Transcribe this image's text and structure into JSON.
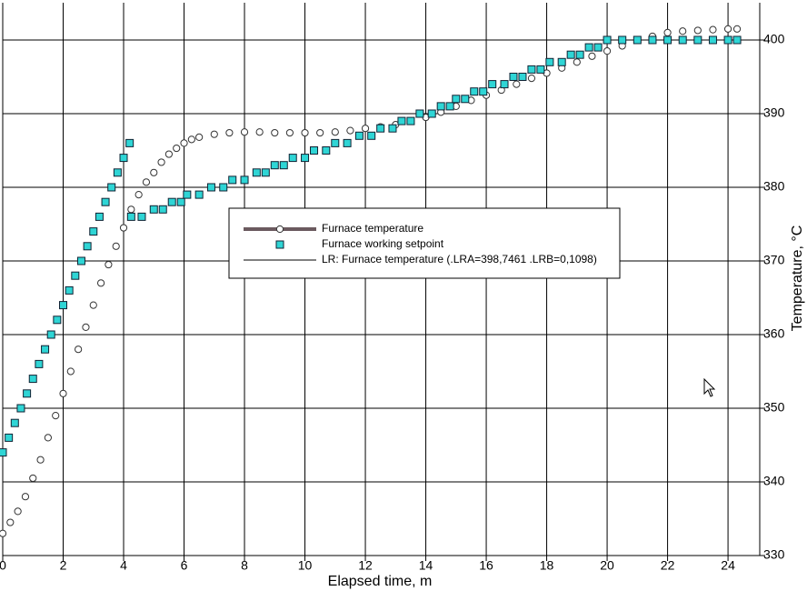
{
  "chart_data": {
    "type": "scatter",
    "x_label": "Elapsed time, m",
    "y_label": "Temperature, °C",
    "xlim": [
      0,
      25.05
    ],
    "ylim": [
      330,
      405.06
    ],
    "xticks": [
      0,
      2,
      4,
      6,
      8,
      10,
      12,
      14,
      16,
      18,
      20,
      22,
      24
    ],
    "yticks": [
      330,
      340,
      350,
      360,
      370,
      380,
      390,
      400
    ],
    "grid": true,
    "legend": "center",
    "series": [
      {
        "name": "Furnace temperature",
        "color": "#6b5a5f",
        "marker": "circle",
        "x": [
          0,
          0.25,
          0.5,
          0.75,
          1,
          1.25,
          1.5,
          1.75,
          2,
          2.25,
          2.5,
          2.75,
          3,
          3.25,
          3.5,
          3.75,
          4,
          4.25,
          4.5,
          4.75,
          5,
          5.25,
          5.5,
          5.75,
          6,
          6.25,
          6.5,
          7,
          7.5,
          8,
          8.5,
          9,
          9.5,
          10,
          10.5,
          11,
          11.5,
          12,
          12.5,
          13,
          13.5,
          14,
          14.5,
          15,
          15.5,
          16,
          16.5,
          17,
          17.5,
          18,
          18.5,
          19,
          19.5,
          20,
          20.5,
          21,
          21.5,
          22,
          22.5,
          23,
          23.5,
          24,
          24.3
        ],
        "values": [
          333,
          334.5,
          336,
          338,
          340.5,
          343,
          346,
          349,
          352,
          355,
          358,
          361,
          364,
          367,
          369.5,
          372,
          374.5,
          377,
          379,
          380.7,
          382,
          383.4,
          384.5,
          385.3,
          386,
          386.5,
          386.8,
          387.2,
          387.4,
          387.5,
          387.5,
          387.4,
          387.4,
          387.4,
          387.4,
          387.5,
          387.7,
          388,
          388.2,
          388.5,
          389,
          389.5,
          390.2,
          391,
          391.8,
          392.5,
          393.2,
          394,
          394.8,
          395.5,
          396.2,
          397,
          397.8,
          398.5,
          399.2,
          400,
          400.5,
          401,
          401.2,
          401.3,
          401.4,
          401.5,
          401.5
        ]
      },
      {
        "name": "Furnace working setpoint",
        "color": "#2fd5d5",
        "marker": "square",
        "x": [
          0,
          0.2,
          0.4,
          0.6,
          0.8,
          1,
          1.2,
          1.4,
          1.6,
          1.8,
          2,
          2.2,
          2.4,
          2.6,
          2.8,
          3,
          3.2,
          3.4,
          3.6,
          3.8,
          4,
          4.2,
          4.25,
          4.6,
          5,
          5.3,
          5.6,
          5.9,
          6.1,
          6.5,
          6.9,
          7.3,
          7.6,
          8,
          8.4,
          8.7,
          9,
          9.3,
          9.6,
          10,
          10.3,
          10.7,
          11,
          11.4,
          11.8,
          12.2,
          12.5,
          12.9,
          13.2,
          13.5,
          13.8,
          14.2,
          14.5,
          14.8,
          15,
          15.3,
          15.6,
          15.9,
          16.2,
          16.6,
          16.9,
          17.2,
          17.5,
          17.8,
          18.1,
          18.5,
          18.8,
          19.1,
          19.4,
          19.7,
          20,
          20.5,
          21,
          21.5,
          22,
          22.5,
          23,
          23.5,
          24,
          24.3
        ],
        "values": [
          344,
          346,
          348,
          350,
          352,
          354,
          356,
          358,
          360,
          362,
          364,
          366,
          368,
          370,
          372,
          374,
          376,
          378,
          380,
          382,
          384,
          386,
          376,
          376,
          377,
          377,
          378,
          378,
          379,
          379,
          380,
          380,
          381,
          381,
          382,
          382,
          383,
          383,
          384,
          384,
          385,
          385,
          386,
          386,
          387,
          387,
          388,
          388,
          389,
          389,
          390,
          390,
          391,
          391,
          392,
          392,
          393,
          393,
          394,
          394,
          395,
          395,
          396,
          396,
          397,
          397,
          398,
          398,
          399,
          399,
          400,
          400,
          400,
          400,
          400,
          400,
          400,
          400,
          400,
          400
        ]
      },
      {
        "name": "LR: Furnace temperature (.LRA=398,7461 .LRB=0,1098)",
        "color": "#000000",
        "marker": "none",
        "x": [],
        "values": []
      }
    ]
  }
}
